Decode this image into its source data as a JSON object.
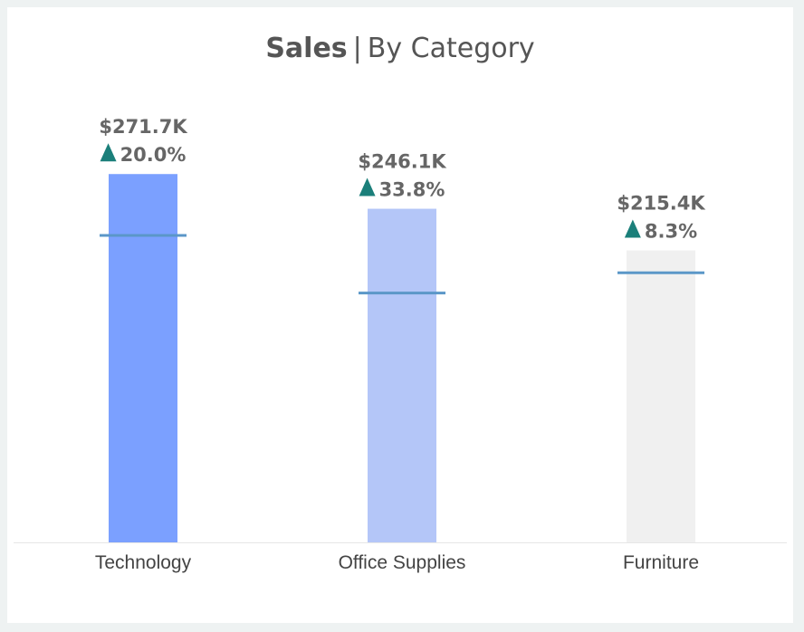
{
  "title": {
    "main": "Sales",
    "separator": "|",
    "sub": "By Category"
  },
  "colors": {
    "up_arrow": "#1b7f7a",
    "reference_line": "#5b97c8",
    "label_text": "#666666",
    "category_text": "#444444",
    "axis_line": "#e6e6e6"
  },
  "chart_data": {
    "type": "bar",
    "categories": [
      "Technology",
      "Office Supplies",
      "Furniture"
    ],
    "values": [
      271.7,
      246.1,
      215.4
    ],
    "value_labels": [
      "$271.7K",
      "$246.1K",
      "$215.4K"
    ],
    "change_labels": [
      "20.0%",
      "33.8%",
      "8.3%"
    ],
    "change_direction": [
      "up",
      "up",
      "up"
    ],
    "reference_values": [
      226.4,
      183.9,
      198.9
    ],
    "bar_colors": [
      "#7ba0ff",
      "#b4c6f8",
      "#f0f0f0"
    ],
    "ylim": [
      0,
      281.2
    ],
    "title": "Sales | By Category",
    "xlabel": "",
    "ylabel": "",
    "grid": false,
    "legend": "none"
  }
}
